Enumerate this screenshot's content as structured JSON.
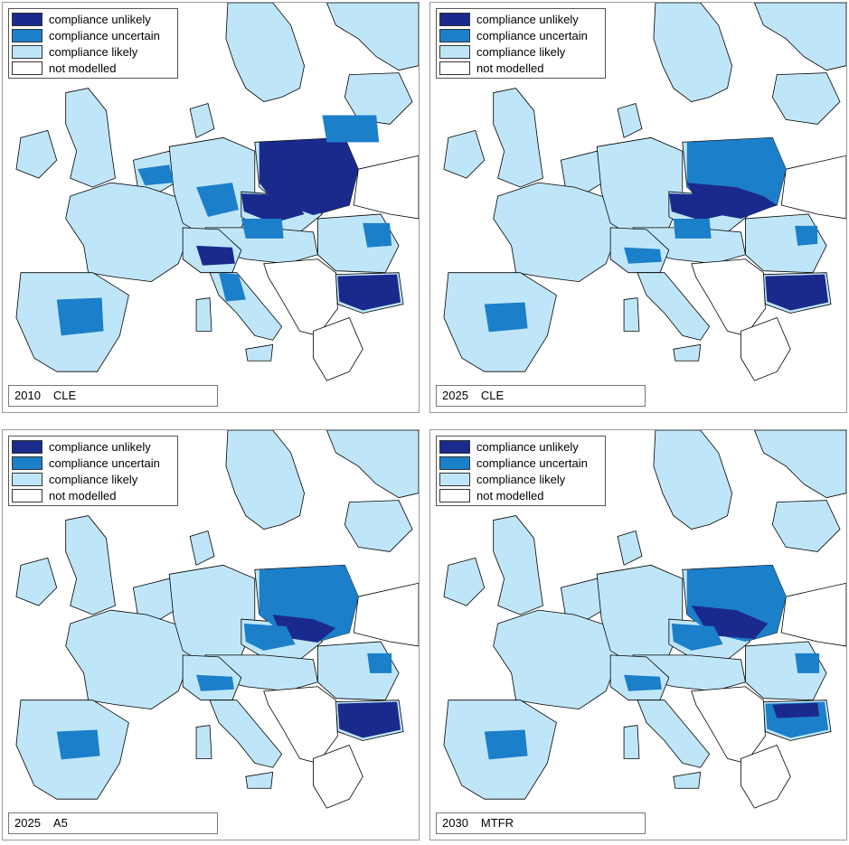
{
  "colors": {
    "compliance_unlikely": "#1a2a8c",
    "compliance_uncertain": "#1c7fca",
    "compliance_likely": "#bfe6f8",
    "not_modelled": "#ffffff",
    "borders": "#000000"
  },
  "legend": {
    "items": [
      {
        "label": "compliance unlikely",
        "color": "#1a2a8c"
      },
      {
        "label": "compliance uncertain",
        "color": "#1c7fca"
      },
      {
        "label": "compliance likely",
        "color": "#bfe6f8"
      },
      {
        "label": "not modelled",
        "color": "#ffffff"
      }
    ]
  },
  "panels": [
    {
      "year": "2010",
      "scenario": "CLE"
    },
    {
      "year": "2025",
      "scenario": "CLE"
    },
    {
      "year": "2025",
      "scenario": "A5"
    },
    {
      "year": "2030",
      "scenario": "MTFR"
    }
  ]
}
